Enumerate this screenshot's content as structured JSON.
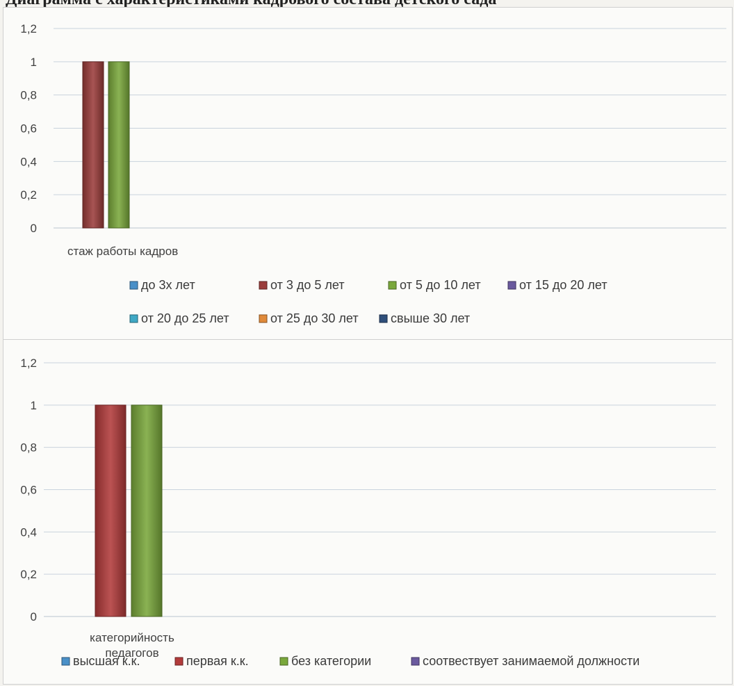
{
  "page_title": "Диаграмма с характеристиками кадрового состава детского сада",
  "chart_data": [
    {
      "type": "bar",
      "categories": [
        "стаж работы кадров"
      ],
      "ylim": [
        0,
        1.2
      ],
      "yticks": [
        "0",
        "0,2",
        "0,4",
        "0,6",
        "0,8",
        "1",
        "1,2"
      ],
      "grid": true,
      "legend_position": "bottom",
      "series": [
        {
          "name": "до 3х лет",
          "values": [
            0
          ],
          "color": "#4a90c8"
        },
        {
          "name": "от 3 до 5 лет",
          "values": [
            1
          ],
          "color": "#9b3d3b"
        },
        {
          "name": "от 5 до 10 лет",
          "values": [
            1
          ],
          "color": "#7aa83c"
        },
        {
          "name": "от 15 до 20 лет",
          "values": [
            0
          ],
          "color": "#6a5a9e"
        },
        {
          "name": "от 20 до 25 лет",
          "values": [
            0
          ],
          "color": "#3fa8c4"
        },
        {
          "name": "от 25 до 30 лет",
          "values": [
            0
          ],
          "color": "#e08a3a"
        },
        {
          "name": "свыше 30 лет",
          "values": [
            0
          ],
          "color": "#2f4f7a"
        }
      ]
    },
    {
      "type": "bar",
      "categories": [
        "категорийность педагогов"
      ],
      "ylim": [
        0,
        1.2
      ],
      "yticks": [
        "0",
        "0,2",
        "0,4",
        "0,6",
        "0,8",
        "1",
        "1,2"
      ],
      "grid": true,
      "legend_position": "bottom",
      "series": [
        {
          "name": "высшая к.к.",
          "values": [
            0
          ],
          "color": "#4a90c8"
        },
        {
          "name": "первая к.к.",
          "values": [
            1
          ],
          "color": "#b23b3b"
        },
        {
          "name": "без категории",
          "values": [
            1
          ],
          "color": "#7aa83c"
        },
        {
          "name": "соотвествует занимаемой должности",
          "values": [
            0
          ],
          "color": "#6a5a9e"
        }
      ]
    }
  ]
}
